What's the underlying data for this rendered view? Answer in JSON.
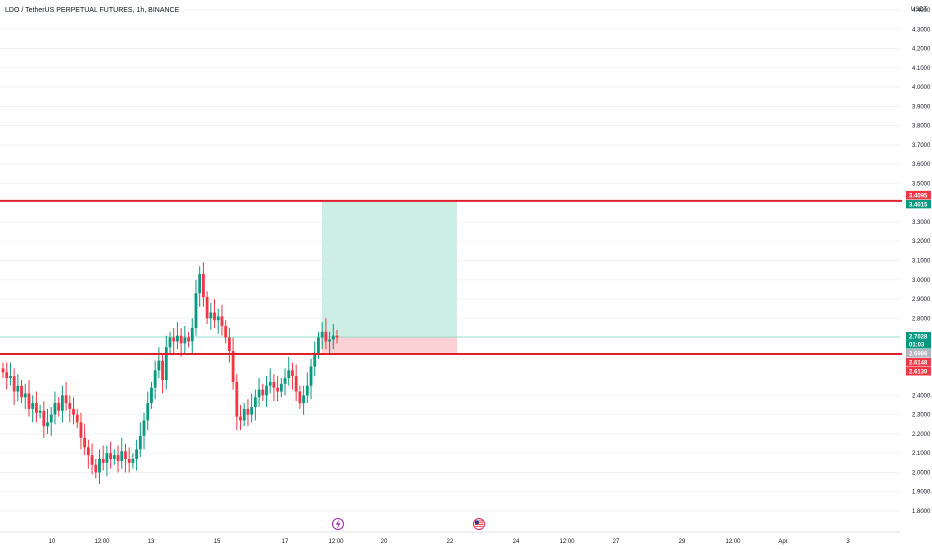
{
  "header": {
    "title": "LDO / TetherUS PERPETUAL FUTURES, 1h, BINANCE"
  },
  "price_axis": {
    "currency": "USDT",
    "ticks": [
      "4.4000",
      "4.3000",
      "4.2000",
      "4.1000",
      "4.0000",
      "3.9000",
      "3.8000",
      "3.7000",
      "3.6000",
      "3.5000",
      "3.3000",
      "3.2000",
      "3.1000",
      "3.0000",
      "2.9000",
      "2.8000",
      "2.4000",
      "2.3000",
      "2.2000",
      "2.1000",
      "2.0000",
      "1.9000",
      "1.8000"
    ]
  },
  "time_axis": {
    "ticks": [
      "10",
      "12:00",
      "13",
      "15",
      "17",
      "12:00",
      "20",
      "22",
      "24",
      "12:00",
      "27",
      "29",
      "12:00",
      "Apr",
      "3"
    ]
  },
  "price_badges": [
    {
      "label": "3.4095",
      "color": "#f23645"
    },
    {
      "label": "3.4015",
      "color": "#089981"
    },
    {
      "label": "2.7028",
      "color": "#089981"
    },
    {
      "label": "01:03",
      "color": "#089981"
    },
    {
      "label": "2.6986",
      "color": "#b2b5be"
    },
    {
      "label": "2.6148",
      "color": "#f23645"
    },
    {
      "label": "2.6130",
      "color": "#f23645"
    }
  ],
  "event_icons": [
    {
      "name": "lightning-icon",
      "glyph": "⚡",
      "color": "#9c27b0"
    },
    {
      "name": "us-flag-icon",
      "glyph": "",
      "color": "#e91e63"
    }
  ],
  "colors": {
    "up": "#089981",
    "down": "#f23645",
    "level_line": "#e0202e",
    "target_zone": "#cdeee5",
    "stop_zone": "#fbd1d4",
    "grid": "#f0f3fa",
    "axis_text": "#131722"
  },
  "chart_data": {
    "type": "candlestick",
    "title": "LDO / TetherUS PERPETUAL FUTURES, 1h, BINANCE",
    "y_unit": "USDT",
    "ylim": [
      1.75,
      4.5
    ],
    "x_ticks": [
      "10",
      "12:00",
      "13",
      "15",
      "17",
      "12:00",
      "20",
      "22",
      "24",
      "12:00",
      "27",
      "29",
      "12:00",
      "Apr",
      "3"
    ],
    "horizontal_levels": [
      3.4095,
      2.6148
    ],
    "position_tool": {
      "entry": 2.7028,
      "target": 3.4095,
      "stop": 2.6148
    },
    "last_price": 2.7028,
    "close_path": [
      2.52,
      2.49,
      2.5,
      2.42,
      2.45,
      2.39,
      2.41,
      2.33,
      2.36,
      2.31,
      2.32,
      2.24,
      2.26,
      2.3,
      2.36,
      2.32,
      2.4,
      2.36,
      2.33,
      2.3,
      2.26,
      2.18,
      2.13,
      2.09,
      2.04,
      2.0,
      2.07,
      2.05,
      2.1,
      2.07,
      2.09,
      2.06,
      2.11,
      2.07,
      2.05,
      2.07,
      2.12,
      2.19,
      2.27,
      2.36,
      2.44,
      2.53,
      2.58,
      2.48,
      2.65,
      2.7,
      2.68,
      2.71,
      2.67,
      2.7,
      2.68,
      2.75,
      2.93,
      3.03,
      2.91,
      2.8,
      2.83,
      2.79,
      2.81,
      2.76,
      2.7,
      2.63,
      2.47,
      2.29,
      2.27,
      2.33,
      2.3,
      2.34,
      2.39,
      2.43,
      2.4,
      2.45,
      2.47,
      2.44,
      2.42,
      2.46,
      2.49,
      2.53,
      2.5,
      2.42,
      2.36,
      2.4,
      2.45,
      2.55,
      2.62,
      2.7,
      2.73,
      2.68,
      2.69,
      2.71,
      2.7
    ]
  }
}
